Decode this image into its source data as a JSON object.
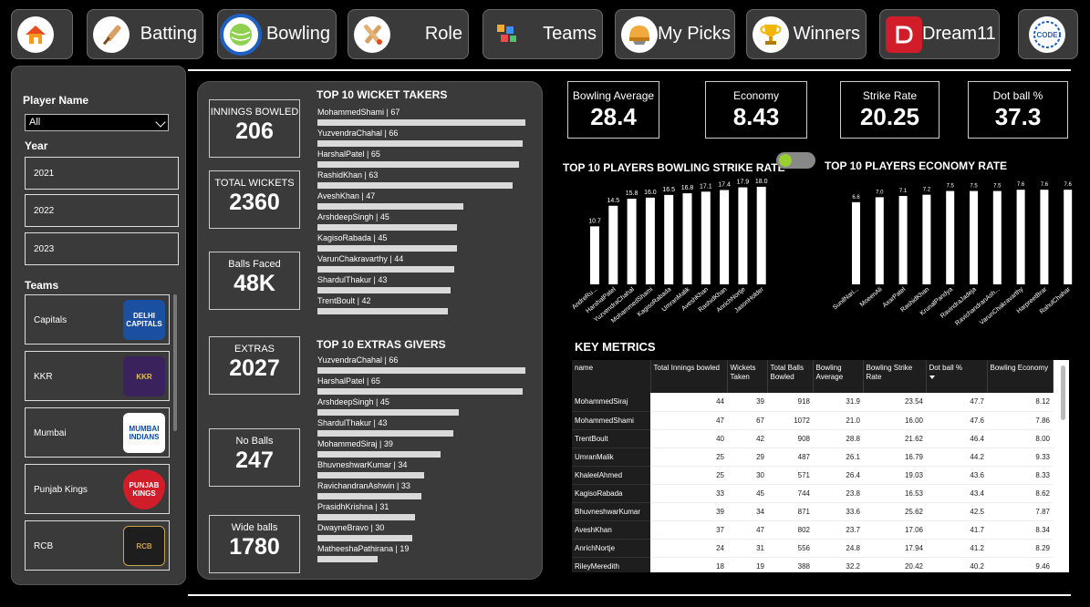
{
  "nav": {
    "home": {
      "label": "",
      "icon": "home-icon"
    },
    "batting": {
      "label": "Batting",
      "icon": "cricket-bat-icon"
    },
    "bowling": {
      "label": "Bowling",
      "icon": "cricket-ball-icon"
    },
    "role": {
      "label": "Role",
      "icon": "crossed-bats-icon"
    },
    "teams": {
      "label": "Teams",
      "icon": "team-icon"
    },
    "mypicks": {
      "label": "My Picks",
      "icon": "helmet-icon"
    },
    "winners": {
      "label": "Winners",
      "icon": "trophy-icon"
    },
    "dream11": {
      "label": "Dream11",
      "icon": "dream11-logo-icon"
    },
    "logo": {
      "label": "",
      "icon": "code-logo-icon"
    }
  },
  "filters": {
    "player_name_label": "Player Name",
    "player_name_value": "All",
    "year_label": "Year",
    "years": [
      "2021",
      "2022",
      "2023"
    ],
    "teams_label": "Teams",
    "teams": [
      {
        "name": "Capitals",
        "logo_text": "DELHI CAPITALS",
        "color": "#1b4fa0"
      },
      {
        "name": "KKR",
        "logo_text": "KKR",
        "color": "#3a225d"
      },
      {
        "name": "Mumbai",
        "logo_text": "MUMBAI INDIANS",
        "color": "#0a4a9f"
      },
      {
        "name": "Punjab Kings",
        "logo_text": "PUNJAB KINGS",
        "color": "#d11d2a"
      },
      {
        "name": "RCB",
        "logo_text": "RCB",
        "color": "#2a2a2a"
      }
    ]
  },
  "stats": [
    {
      "label": "INNINGS BOWLED",
      "value": "206"
    },
    {
      "label": "TOTAL WICKETS",
      "value": "2360"
    },
    {
      "label": "Balls Faced",
      "value": "48K"
    },
    {
      "label": "EXTRAS",
      "value": "2027"
    },
    {
      "label": "No Balls",
      "value": "247"
    },
    {
      "label": "Wide balls",
      "value": "1780"
    }
  ],
  "top_wickets": {
    "title": "TOP 10 WICKET TAKERS",
    "items": [
      {
        "label": "MohammedShami | 67",
        "value": 67
      },
      {
        "label": "YuzvendraChahal | 66",
        "value": 66
      },
      {
        "label": "HarshalPatel | 65",
        "value": 65
      },
      {
        "label": "RashidKhan | 63",
        "value": 63
      },
      {
        "label": "AveshKhan | 47",
        "value": 47
      },
      {
        "label": "ArshdeepSingh | 45",
        "value": 45
      },
      {
        "label": "KagisoRabada | 45",
        "value": 45
      },
      {
        "label": "VarunChakravarthy | 44",
        "value": 44
      },
      {
        "label": "ShardulThakur | 43",
        "value": 43
      },
      {
        "label": "TrentBoult | 42",
        "value": 42
      }
    ]
  },
  "top_extras": {
    "title": "TOP 10 EXTRAS GIVERS",
    "items": [
      {
        "label": "YuzvendraChahal | 66",
        "value": 66
      },
      {
        "label": "HarshalPatel | 65",
        "value": 65
      },
      {
        "label": "ArshdeepSingh | 45",
        "value": 45
      },
      {
        "label": "ShardulThakur | 43",
        "value": 43
      },
      {
        "label": "MohammedSiraj | 39",
        "value": 39
      },
      {
        "label": "BhuvneshwarKumar | 34",
        "value": 34
      },
      {
        "label": "RavichandranAshwin | 33",
        "value": 33
      },
      {
        "label": "PrasidhKrishna | 31",
        "value": 31
      },
      {
        "label": "DwayneBravo | 30",
        "value": 30
      },
      {
        "label": "MatheeshaPathirana | 19",
        "value": 19
      }
    ]
  },
  "kpis": [
    {
      "label": "Bowling Average",
      "value": "28.4"
    },
    {
      "label": "Economy",
      "value": "8.43"
    },
    {
      "label": "Strike Rate",
      "value": "20.25"
    },
    {
      "label": "Dot ball %",
      "value": "37.3"
    }
  ],
  "chart_data": [
    {
      "type": "bar",
      "title": "TOP 10 PLAYERS BOWLING STRIKE RATE",
      "categories": [
        "AndreRu...",
        "HarshalPatel",
        "YuzvendraChahal",
        "MohammedShami",
        "KagisoRabada",
        "UmranMalik",
        "AveshKhan",
        "RashidKhan",
        "AnrichNortje",
        "JasonHolder"
      ],
      "values": [
        10.7,
        14.5,
        15.8,
        16.0,
        16.5,
        16.8,
        17.1,
        17.4,
        17.9,
        18.0
      ],
      "ylim": [
        0,
        19
      ]
    },
    {
      "type": "bar",
      "title": "TOP 10 PLAYERS ECONOMY RATE",
      "categories": [
        "SunilNari...",
        "MoeenAli",
        "AxarPatel",
        "RashidKhan",
        "KrunalPandya",
        "RavindraJadeja",
        "RavichandranAsh...",
        "VarunChakravarthy",
        "HarpreetBrar",
        "RahulChahar"
      ],
      "values": [
        6.6,
        7.0,
        7.1,
        7.2,
        7.5,
        7.5,
        7.5,
        7.6,
        7.6,
        7.6
      ],
      "ylim": [
        0,
        8.2
      ]
    }
  ],
  "key_metrics": {
    "title": "KEY METRICS",
    "columns": [
      "name",
      "Total Innings bowled",
      "Wickets Taken",
      "Total Balls Bowled",
      "Bowling Average",
      "Bowling Strike Rate",
      "Dot ball %",
      "Bowling Economy"
    ],
    "rows": [
      [
        "MohammedSiraj",
        "44",
        "39",
        "918",
        "31.9",
        "23.54",
        "47.7",
        "8.12"
      ],
      [
        "MohammedShami",
        "47",
        "67",
        "1072",
        "21.0",
        "16.00",
        "47.6",
        "7.86"
      ],
      [
        "TrentBoult",
        "40",
        "42",
        "908",
        "28.8",
        "21.62",
        "46.4",
        "8.00"
      ],
      [
        "UmranMalik",
        "25",
        "29",
        "487",
        "26.1",
        "16.79",
        "44.2",
        "9.33"
      ],
      [
        "KhaleelAhmed",
        "25",
        "30",
        "571",
        "26.4",
        "19.03",
        "43.6",
        "8.33"
      ],
      [
        "KagisoRabada",
        "33",
        "45",
        "744",
        "23.8",
        "16.53",
        "43.4",
        "8.62"
      ],
      [
        "BhuvneshwarKumar",
        "39",
        "34",
        "871",
        "33.6",
        "25.62",
        "42.5",
        "7.87"
      ],
      [
        "AveshKhan",
        "37",
        "47",
        "802",
        "23.7",
        "17.06",
        "41.7",
        "8.34"
      ],
      [
        "AnrichNortje",
        "24",
        "31",
        "556",
        "24.8",
        "17.94",
        "41.2",
        "8.29"
      ],
      [
        "RileyMeredith",
        "18",
        "19",
        "388",
        "32.2",
        "20.42",
        "40.2",
        "9.46"
      ]
    ]
  }
}
